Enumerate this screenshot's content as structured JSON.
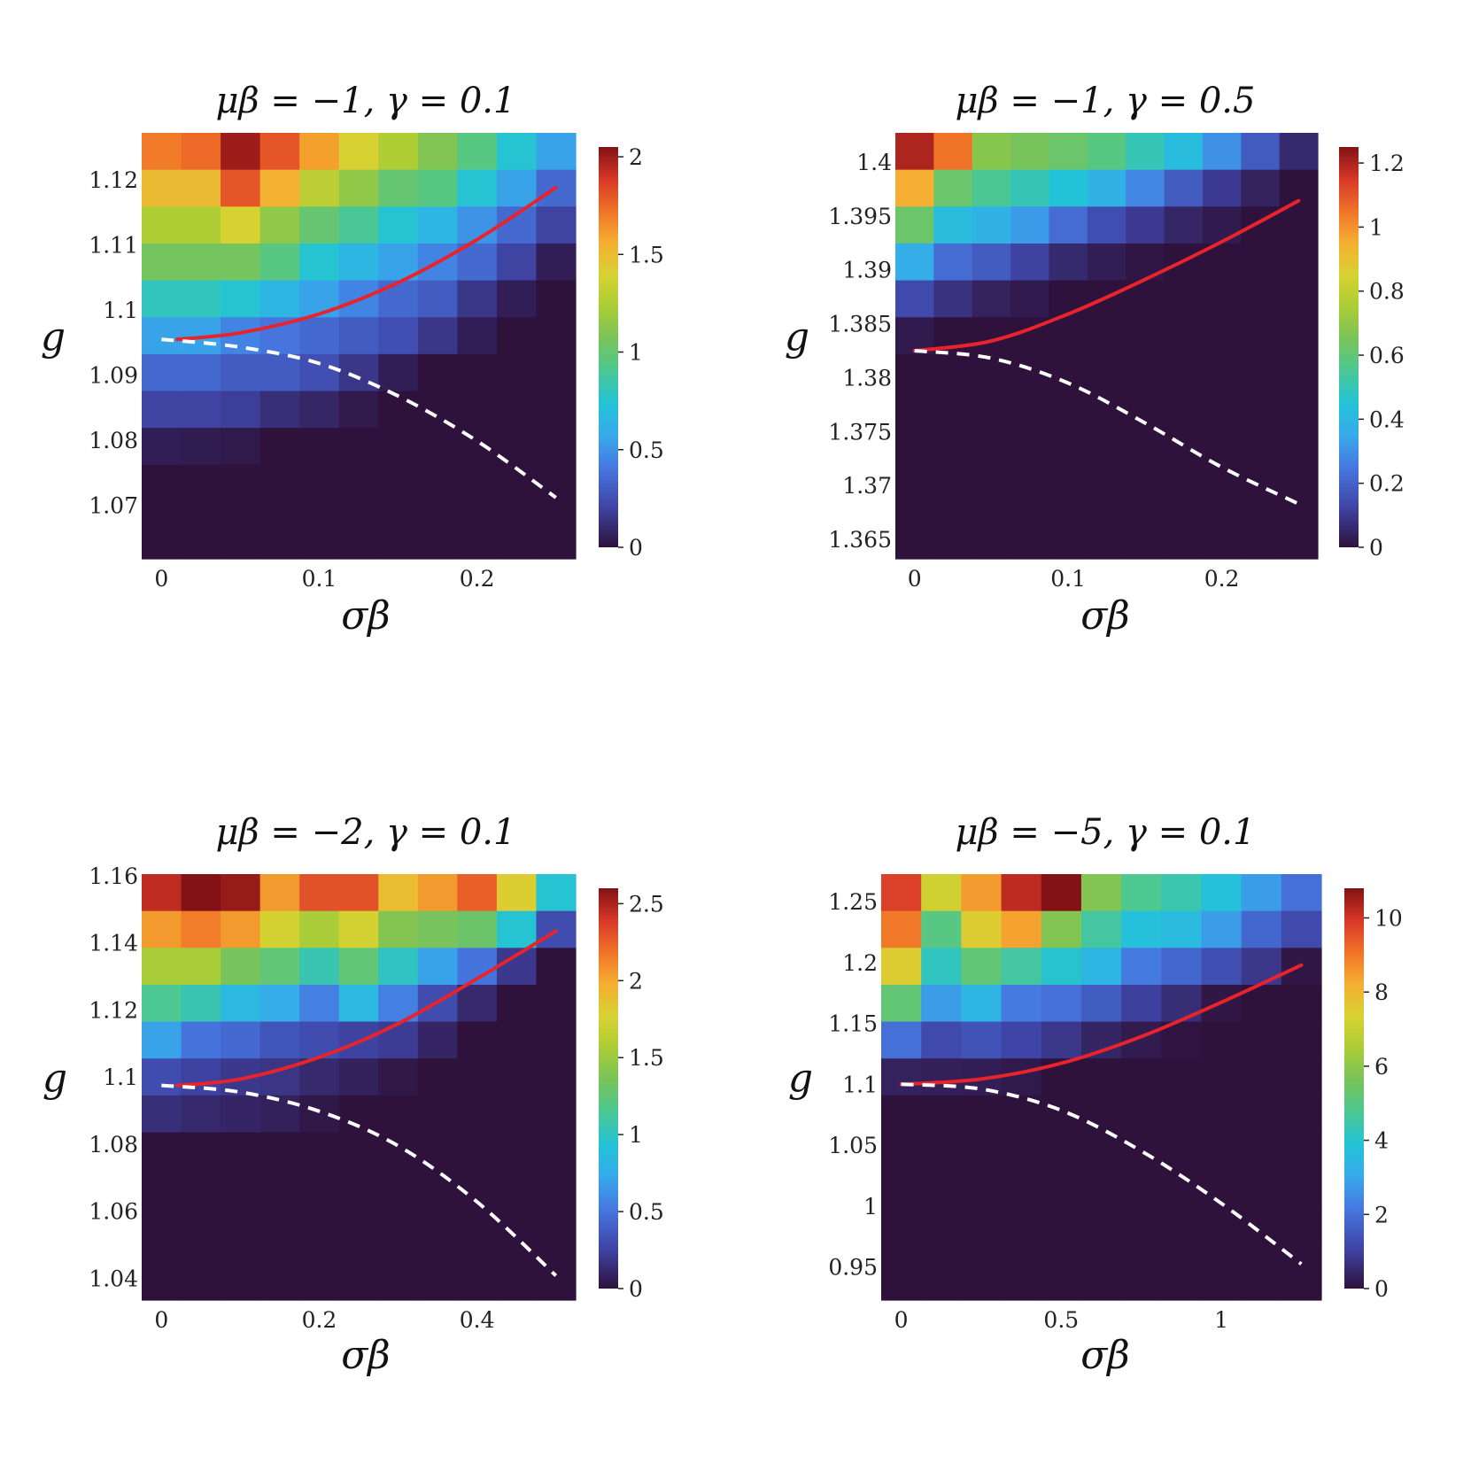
{
  "chart_data": [
    {
      "type": "heatmap",
      "title": "μβ = −1, γ = 0.1",
      "xlabel": "σβ",
      "ylabel": "g",
      "x_ticks": [
        {
          "v": 0,
          "label": "0"
        },
        {
          "v": 0.1,
          "label": "0.1"
        },
        {
          "v": 0.2,
          "label": "0.2"
        }
      ],
      "y_ticks": [
        {
          "v": 1.07,
          "label": "1.07"
        },
        {
          "v": 1.08,
          "label": "1.08"
        },
        {
          "v": 1.09,
          "label": "1.09"
        },
        {
          "v": 1.1,
          "label": "1.1"
        },
        {
          "v": 1.11,
          "label": "1.11"
        },
        {
          "v": 1.12,
          "label": "1.12"
        }
      ],
      "x_range": [
        -0.0125,
        0.2625
      ],
      "y_range": [
        1.0618,
        1.1272
      ],
      "cell_columns": 11,
      "cell_rows_from_top": 11,
      "colorbar": {
        "min": 0,
        "max": 2.05,
        "ticks": [
          {
            "v": 0,
            "label": "0"
          },
          {
            "v": 0.5,
            "label": "0.5"
          },
          {
            "v": 1,
            "label": "1"
          },
          {
            "v": 1.5,
            "label": "1.5"
          },
          {
            "v": 2,
            "label": "2"
          }
        ]
      },
      "values": [
        [
          1.7,
          1.75,
          2.0,
          1.8,
          1.6,
          1.4,
          1.25,
          1.1,
          0.95,
          0.75,
          0.55
        ],
        [
          1.5,
          1.5,
          1.8,
          1.55,
          1.3,
          1.15,
          1.0,
          0.95,
          0.75,
          0.55,
          0.35
        ],
        [
          1.25,
          1.25,
          1.4,
          1.15,
          1.0,
          0.9,
          0.75,
          0.65,
          0.5,
          0.35,
          0.2
        ],
        [
          1.05,
          1.05,
          1.05,
          0.95,
          0.75,
          0.65,
          0.55,
          0.45,
          0.35,
          0.2,
          0.05
        ],
        [
          0.8,
          0.8,
          0.75,
          0.65,
          0.55,
          0.45,
          0.35,
          0.3,
          0.15,
          0.05,
          0.0
        ],
        [
          0.55,
          0.55,
          0.45,
          0.4,
          0.35,
          0.3,
          0.25,
          0.15,
          0.05,
          0.0,
          0.0
        ],
        [
          0.35,
          0.35,
          0.3,
          0.3,
          0.25,
          0.15,
          0.05,
          0.0,
          0.0,
          0.0,
          0.0
        ],
        [
          0.2,
          0.2,
          0.18,
          0.12,
          0.08,
          0.03,
          0.0,
          0.0,
          0.0,
          0.0,
          0.0
        ],
        [
          0.05,
          0.04,
          0.03,
          0.0,
          0.0,
          0.0,
          0.0,
          0.0,
          0.0,
          0.0,
          0.0
        ],
        [
          0.0,
          0.0,
          0.0,
          0.0,
          0.0,
          0.0,
          0.0,
          0.0,
          0.0,
          0.0,
          0.0
        ],
        [
          0.0,
          0.0,
          0.0,
          0.0,
          0.0,
          0.0,
          0.0,
          0.0,
          0.0,
          0.0,
          0.0
        ]
      ],
      "lines": [
        {
          "style": "solid",
          "color": "#e8232c",
          "points": [
            [
              0.01,
              1.0955
            ],
            [
              0.05,
              1.0965
            ],
            [
              0.1,
              1.0994
            ],
            [
              0.15,
              1.1042
            ],
            [
              0.2,
              1.1108
            ],
            [
              0.25,
              1.1188
            ]
          ]
        },
        {
          "style": "dashed",
          "color": "#ffffff",
          "points": [
            [
              0.0,
              1.0955
            ],
            [
              0.05,
              1.0943
            ],
            [
              0.1,
              1.0918
            ],
            [
              0.15,
              1.0868
            ],
            [
              0.2,
              1.0799
            ],
            [
              0.25,
              1.0712
            ]
          ]
        }
      ]
    },
    {
      "type": "heatmap",
      "title": "μβ = −1, γ = 0.5",
      "xlabel": "σβ",
      "ylabel": "g",
      "x_ticks": [
        {
          "v": 0,
          "label": "0"
        },
        {
          "v": 0.1,
          "label": "0.1"
        },
        {
          "v": 0.2,
          "label": "0.2"
        }
      ],
      "y_ticks": [
        {
          "v": 1.365,
          "label": "1.365"
        },
        {
          "v": 1.37,
          "label": "1.37"
        },
        {
          "v": 1.375,
          "label": "1.375"
        },
        {
          "v": 1.38,
          "label": "1.38"
        },
        {
          "v": 1.385,
          "label": "1.385"
        },
        {
          "v": 1.39,
          "label": "1.39"
        },
        {
          "v": 1.395,
          "label": "1.395"
        },
        {
          "v": 1.4,
          "label": "1.4"
        }
      ],
      "x_range": [
        -0.0125,
        0.2625
      ],
      "y_range": [
        1.3632,
        1.4027
      ],
      "cell_columns": 11,
      "cell_rows_from_top": 11,
      "colorbar": {
        "min": 0,
        "max": 1.25,
        "ticks": [
          {
            "v": 0,
            "label": "0"
          },
          {
            "v": 0.2,
            "label": "0.2"
          },
          {
            "v": 0.4,
            "label": "0.4"
          },
          {
            "v": 0.6,
            "label": "0.6"
          },
          {
            "v": 0.8,
            "label": "0.8"
          },
          {
            "v": 1,
            "label": "1"
          },
          {
            "v": 1.2,
            "label": "1.2"
          }
        ]
      },
      "values": [
        [
          1.2,
          1.05,
          0.68,
          0.65,
          0.62,
          0.58,
          0.5,
          0.42,
          0.3,
          0.18,
          0.06
        ],
        [
          0.95,
          0.62,
          0.55,
          0.5,
          0.45,
          0.38,
          0.28,
          0.18,
          0.1,
          0.04,
          0.0
        ],
        [
          0.62,
          0.42,
          0.38,
          0.32,
          0.22,
          0.15,
          0.1,
          0.05,
          0.02,
          0.0,
          0.0
        ],
        [
          0.36,
          0.22,
          0.18,
          0.12,
          0.06,
          0.03,
          0.01,
          0.0,
          0.0,
          0.0,
          0.0
        ],
        [
          0.14,
          0.08,
          0.04,
          0.02,
          0.0,
          0.0,
          0.0,
          0.0,
          0.0,
          0.0,
          0.0
        ],
        [
          0.02,
          0.0,
          0.0,
          0.0,
          0.0,
          0.0,
          0.0,
          0.0,
          0.0,
          0.0,
          0.0
        ],
        [
          0.0,
          0.0,
          0.0,
          0.0,
          0.0,
          0.0,
          0.0,
          0.0,
          0.0,
          0.0,
          0.0
        ],
        [
          0.0,
          0.0,
          0.0,
          0.0,
          0.0,
          0.0,
          0.0,
          0.0,
          0.0,
          0.0,
          0.0
        ],
        [
          0.0,
          0.0,
          0.0,
          0.0,
          0.0,
          0.0,
          0.0,
          0.0,
          0.0,
          0.0,
          0.0
        ],
        [
          0.0,
          0.0,
          0.0,
          0.0,
          0.0,
          0.0,
          0.0,
          0.0,
          0.0,
          0.0,
          0.0
        ],
        [
          0.0,
          0.0,
          0.0,
          0.0,
          0.0,
          0.0,
          0.0,
          0.0,
          0.0,
          0.0,
          0.0
        ]
      ],
      "lines": [
        {
          "style": "solid",
          "color": "#e8232c",
          "points": [
            [
              0.0,
              1.3825
            ],
            [
              0.05,
              1.3834
            ],
            [
              0.1,
              1.3859
            ],
            [
              0.15,
              1.3891
            ],
            [
              0.2,
              1.3926
            ],
            [
              0.25,
              1.3964
            ]
          ]
        },
        {
          "style": "dashed",
          "color": "#ffffff",
          "points": [
            [
              0.0,
              1.3825
            ],
            [
              0.05,
              1.3818
            ],
            [
              0.1,
              1.3795
            ],
            [
              0.15,
              1.3758
            ],
            [
              0.2,
              1.3717
            ],
            [
              0.25,
              1.3683
            ]
          ]
        }
      ]
    },
    {
      "type": "heatmap",
      "title": "μβ = −2, γ = 0.1",
      "xlabel": "σβ",
      "ylabel": "g",
      "x_ticks": [
        {
          "v": 0,
          "label": "0"
        },
        {
          "v": 0.2,
          "label": "0.2"
        },
        {
          "v": 0.4,
          "label": "0.4"
        }
      ],
      "y_ticks": [
        {
          "v": 1.04,
          "label": "1.04"
        },
        {
          "v": 1.06,
          "label": "1.06"
        },
        {
          "v": 1.08,
          "label": "1.08"
        },
        {
          "v": 1.1,
          "label": "1.1"
        },
        {
          "v": 1.12,
          "label": "1.12"
        },
        {
          "v": 1.14,
          "label": "1.14"
        },
        {
          "v": 1.16,
          "label": "1.16"
        }
      ],
      "x_range": [
        -0.025,
        0.525
      ],
      "y_range": [
        1.0335,
        1.1605
      ],
      "cell_columns": 11,
      "cell_rows_from_top": 11,
      "colorbar": {
        "min": 0,
        "max": 2.6,
        "ticks": [
          {
            "v": 0,
            "label": "0"
          },
          {
            "v": 0.5,
            "label": "0.5"
          },
          {
            "v": 1,
            "label": "1"
          },
          {
            "v": 1.5,
            "label": "1.5"
          },
          {
            "v": 2,
            "label": "2"
          },
          {
            "v": 2.5,
            "label": "2.5"
          }
        ]
      },
      "values": [
        [
          2.45,
          2.6,
          2.55,
          2.05,
          2.3,
          2.3,
          1.9,
          2.05,
          2.25,
          1.8,
          0.95
        ],
        [
          2.05,
          2.15,
          2.05,
          1.75,
          1.55,
          1.75,
          1.4,
          1.35,
          1.3,
          0.95,
          0.3
        ],
        [
          1.55,
          1.55,
          1.35,
          1.25,
          1.05,
          1.25,
          1.0,
          0.7,
          0.5,
          0.2,
          0.0
        ],
        [
          1.15,
          1.05,
          0.85,
          0.75,
          0.55,
          0.85,
          0.55,
          0.3,
          0.12,
          0.0,
          0.0
        ],
        [
          0.7,
          0.5,
          0.45,
          0.35,
          0.3,
          0.25,
          0.22,
          0.1,
          0.0,
          0.0,
          0.0
        ],
        [
          0.3,
          0.25,
          0.2,
          0.18,
          0.12,
          0.08,
          0.03,
          0.0,
          0.0,
          0.0,
          0.0
        ],
        [
          0.15,
          0.12,
          0.1,
          0.08,
          0.03,
          0.0,
          0.0,
          0.0,
          0.0,
          0.0,
          0.0
        ],
        [
          0.0,
          0.0,
          0.0,
          0.0,
          0.0,
          0.0,
          0.0,
          0.0,
          0.0,
          0.0,
          0.0
        ],
        [
          0.0,
          0.0,
          0.0,
          0.0,
          0.0,
          0.0,
          0.0,
          0.0,
          0.0,
          0.0,
          0.0
        ],
        [
          0.0,
          0.0,
          0.0,
          0.0,
          0.0,
          0.0,
          0.0,
          0.0,
          0.0,
          0.0,
          0.0
        ],
        [
          0.0,
          0.0,
          0.0,
          0.0,
          0.0,
          0.0,
          0.0,
          0.0,
          0.0,
          0.0,
          0.0
        ]
      ],
      "lines": [
        {
          "style": "solid",
          "color": "#e8232c",
          "points": [
            [
              0.02,
              1.0975
            ],
            [
              0.1,
              1.0994
            ],
            [
              0.2,
              1.1059
            ],
            [
              0.3,
              1.1159
            ],
            [
              0.4,
              1.1293
            ],
            [
              0.5,
              1.1435
            ]
          ]
        },
        {
          "style": "dashed",
          "color": "#ffffff",
          "points": [
            [
              0.0,
              1.0975
            ],
            [
              0.1,
              1.0955
            ],
            [
              0.2,
              1.0898
            ],
            [
              0.3,
              1.0795
            ],
            [
              0.4,
              1.0628
            ],
            [
              0.5,
              1.0408
            ]
          ]
        }
      ]
    },
    {
      "type": "heatmap",
      "title": "μβ = −5, γ = 0.1",
      "xlabel": "σβ",
      "ylabel": "g",
      "x_ticks": [
        {
          "v": 0,
          "label": "0"
        },
        {
          "v": 0.5,
          "label": "0.5"
        },
        {
          "v": 1,
          "label": "1"
        }
      ],
      "y_ticks": [
        {
          "v": 0.95,
          "label": "0.95"
        },
        {
          "v": 1,
          "label": "1"
        },
        {
          "v": 1.05,
          "label": "1.05"
        },
        {
          "v": 1.1,
          "label": "1.1"
        },
        {
          "v": 1.15,
          "label": "1.15"
        },
        {
          "v": 1.2,
          "label": "1.2"
        },
        {
          "v": 1.25,
          "label": "1.25"
        }
      ],
      "x_range": [
        -0.0625,
        1.3125
      ],
      "y_range": [
        0.9227,
        1.2727
      ],
      "cell_columns": 11,
      "cell_rows_from_top": 11,
      "colorbar": {
        "min": 0,
        "max": 10.8,
        "ticks": [
          {
            "v": 0,
            "label": "0"
          },
          {
            "v": 2,
            "label": "2"
          },
          {
            "v": 4,
            "label": "4"
          },
          {
            "v": 6,
            "label": "6"
          },
          {
            "v": 8,
            "label": "8"
          },
          {
            "v": 10,
            "label": "10"
          }
        ]
      },
      "values": [
        [
          9.8,
          7.2,
          8.5,
          10.2,
          10.8,
          5.8,
          4.8,
          4.4,
          3.8,
          2.8,
          2.0
        ],
        [
          9.0,
          5.0,
          7.5,
          8.4,
          5.8,
          4.6,
          3.8,
          3.6,
          2.8,
          1.8,
          1.2
        ],
        [
          7.5,
          4.2,
          5.2,
          4.6,
          4.0,
          3.4,
          2.2,
          1.8,
          1.3,
          0.8,
          0.1
        ],
        [
          5.2,
          2.8,
          3.4,
          2.2,
          2.0,
          1.6,
          1.0,
          0.6,
          0.1,
          0.0,
          0.0
        ],
        [
          2.0,
          1.2,
          1.4,
          1.1,
          0.8,
          0.4,
          0.2,
          0.05,
          0.0,
          0.0,
          0.0
        ],
        [
          0.35,
          0.3,
          0.25,
          0.15,
          0.0,
          0.0,
          0.0,
          0.0,
          0.0,
          0.0,
          0.0
        ],
        [
          0.0,
          0.0,
          0.0,
          0.0,
          0.0,
          0.0,
          0.0,
          0.0,
          0.0,
          0.0,
          0.0
        ],
        [
          0.0,
          0.0,
          0.0,
          0.0,
          0.0,
          0.0,
          0.0,
          0.0,
          0.0,
          0.0,
          0.0
        ],
        [
          0.0,
          0.0,
          0.0,
          0.0,
          0.0,
          0.0,
          0.0,
          0.0,
          0.0,
          0.0,
          0.0
        ],
        [
          0.0,
          0.0,
          0.0,
          0.0,
          0.0,
          0.0,
          0.0,
          0.0,
          0.0,
          0.0,
          0.0
        ],
        [
          0.0,
          0.0,
          0.0,
          0.0,
          0.0,
          0.0,
          0.0,
          0.0,
          0.0,
          0.0,
          0.0
        ]
      ],
      "lines": [
        {
          "style": "solid",
          "color": "#e8232c",
          "points": [
            [
              0.0,
              1.1
            ],
            [
              0.25,
              1.1043
            ],
            [
              0.5,
              1.1173
            ],
            [
              0.75,
              1.1392
            ],
            [
              1.0,
              1.1673
            ],
            [
              1.25,
              1.1979
            ]
          ]
        },
        {
          "style": "dashed",
          "color": "#ffffff",
          "points": [
            [
              0.0,
              1.1
            ],
            [
              0.25,
              1.0961
            ],
            [
              0.5,
              1.0786
            ],
            [
              0.75,
              1.0452
            ],
            [
              1.0,
              1.0022
            ],
            [
              1.25,
              0.9523
            ]
          ]
        }
      ]
    }
  ]
}
